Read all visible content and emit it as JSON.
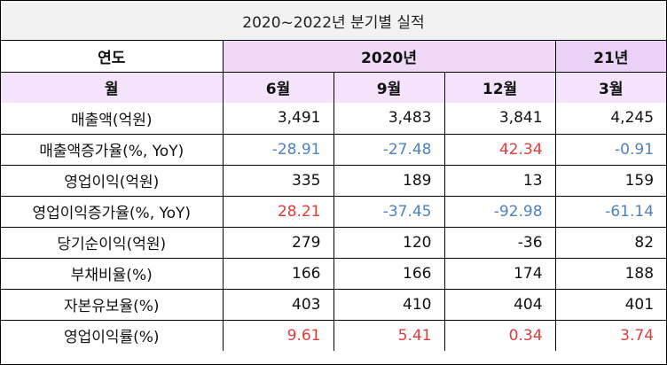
{
  "title": "2020~2022년 분기별 실적",
  "header": {
    "year_label": "연도",
    "month_label": "월",
    "year_2020": "2020년",
    "year_2021": "21년",
    "months": [
      "6월",
      "9월",
      "12월",
      "3월"
    ]
  },
  "rows": [
    {
      "label": "매출액(억원)",
      "values": [
        "3,491",
        "3,483",
        "3,841",
        "4,245"
      ],
      "colors": [
        "",
        "",
        "",
        ""
      ]
    },
    {
      "label": "매출액증가율(%, YoY)",
      "values": [
        "-28.91",
        "-27.48",
        "42.34",
        "-0.91"
      ],
      "colors": [
        "neg",
        "neg",
        "pos",
        "neg"
      ]
    },
    {
      "label": "영업이익(억원)",
      "values": [
        "335",
        "189",
        "13",
        "159"
      ],
      "colors": [
        "",
        "",
        "",
        ""
      ]
    },
    {
      "label": "영업이익증가율(%, YoY)",
      "values": [
        "28.21",
        "-37.45",
        "-92.98",
        "-61.14"
      ],
      "colors": [
        "pos",
        "neg",
        "neg",
        "neg"
      ]
    },
    {
      "label": "당기순이익(억원)",
      "values": [
        "279",
        "120",
        "-36",
        "82"
      ],
      "colors": [
        "",
        "",
        "",
        ""
      ]
    },
    {
      "label": "부채비율(%)",
      "values": [
        "166",
        "166",
        "174",
        "188"
      ],
      "colors": [
        "",
        "",
        "",
        ""
      ]
    },
    {
      "label": "자본유보율(%)",
      "values": [
        "403",
        "410",
        "404",
        "401"
      ],
      "colors": [
        "",
        "",
        "",
        ""
      ]
    },
    {
      "label": "영업이익률(%)",
      "values": [
        "9.61",
        "5.41",
        "0.34",
        "3.74"
      ],
      "colors": [
        "pos",
        "pos",
        "pos",
        "pos"
      ]
    }
  ],
  "colors": {
    "negative": "#4f81bd",
    "positive": "#e03c3c",
    "header_fill": "#efd9f7",
    "title_fill": "#f2f2f2"
  }
}
